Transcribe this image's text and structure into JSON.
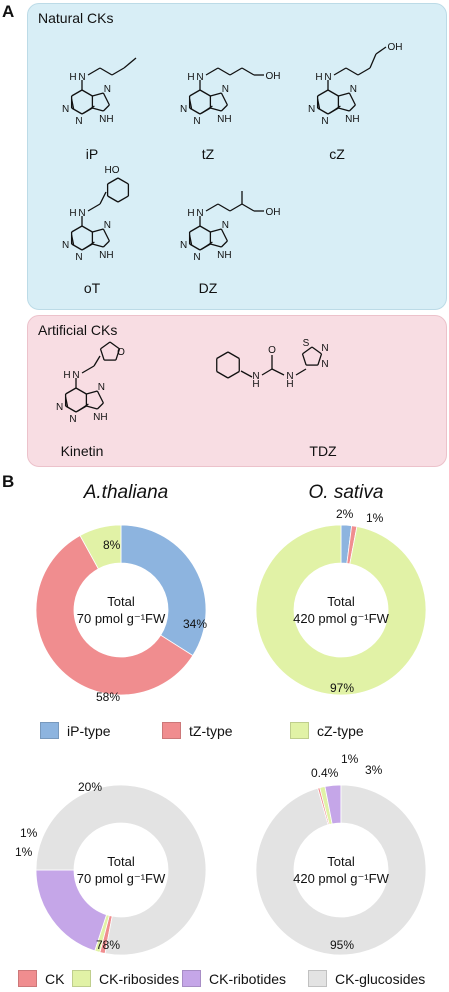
{
  "panels": {
    "a": "A",
    "b": "B"
  },
  "natural": {
    "title": "Natural CKs",
    "molecules": [
      "iP",
      "tZ",
      "cZ",
      "oT",
      "DZ"
    ]
  },
  "artificial": {
    "title": "Artificial CKs",
    "molecules": [
      "Kinetin",
      "TDZ"
    ]
  },
  "chem_labels": {
    "H": "H",
    "N": "N",
    "NH": "NH",
    "OH": "OH",
    "HO": "HO",
    "O": "O",
    "S": "S",
    "HN": "HN"
  },
  "species": {
    "left": "A.thaliana",
    "right": "O. sativa"
  },
  "center": {
    "total": "Total",
    "left_amount": "70 pmol g⁻¹FW",
    "right_amount": "420 pmol g⁻¹FW"
  },
  "colors": {
    "iP_type": "#8db4df",
    "tZ_type": "#f08d8f",
    "cZ_type": "#e1f2a6",
    "CK": "#f08d8f",
    "CK_ribosides": "#e1f2a6",
    "CK_ribotides": "#c5a6e8",
    "CK_glucosides": "#e3e3e3",
    "natural_bg": "#d8eef6",
    "artificial_bg": "#f8dde3"
  },
  "legend_top": [
    "iP-type",
    "tZ-type",
    "cZ-type"
  ],
  "legend_bottom": [
    "CK",
    "CK-ribosides",
    "CK-ribotides",
    "CK-glucosides"
  ],
  "chart_data": [
    {
      "type": "pie",
      "title": "A.thaliana",
      "categories": [
        "iP-type",
        "tZ-type",
        "cZ-type"
      ],
      "values": [
        34,
        58,
        8
      ],
      "labels": [
        "34%",
        "58%",
        "8%"
      ]
    },
    {
      "type": "pie",
      "title": "O. sativa",
      "categories": [
        "iP-type",
        "tZ-type",
        "cZ-type"
      ],
      "values": [
        2,
        1,
        97
      ],
      "labels": [
        "2%",
        "1%",
        "97%"
      ]
    },
    {
      "type": "pie",
      "title": "A.thaliana",
      "categories": [
        "CK",
        "CK-ribosides",
        "CK-ribotides",
        "CK-glucosides"
      ],
      "values": [
        1,
        1,
        20,
        78
      ],
      "labels": [
        "1%",
        "1%",
        "20%",
        "78%"
      ]
    },
    {
      "type": "pie",
      "title": "O. sativa",
      "categories": [
        "CK",
        "CK-ribosides",
        "CK-ribotides",
        "CK-glucosides"
      ],
      "values": [
        0.4,
        1,
        3,
        95
      ],
      "labels": [
        "0.4%",
        "1%",
        "3%",
        "95%"
      ]
    }
  ]
}
